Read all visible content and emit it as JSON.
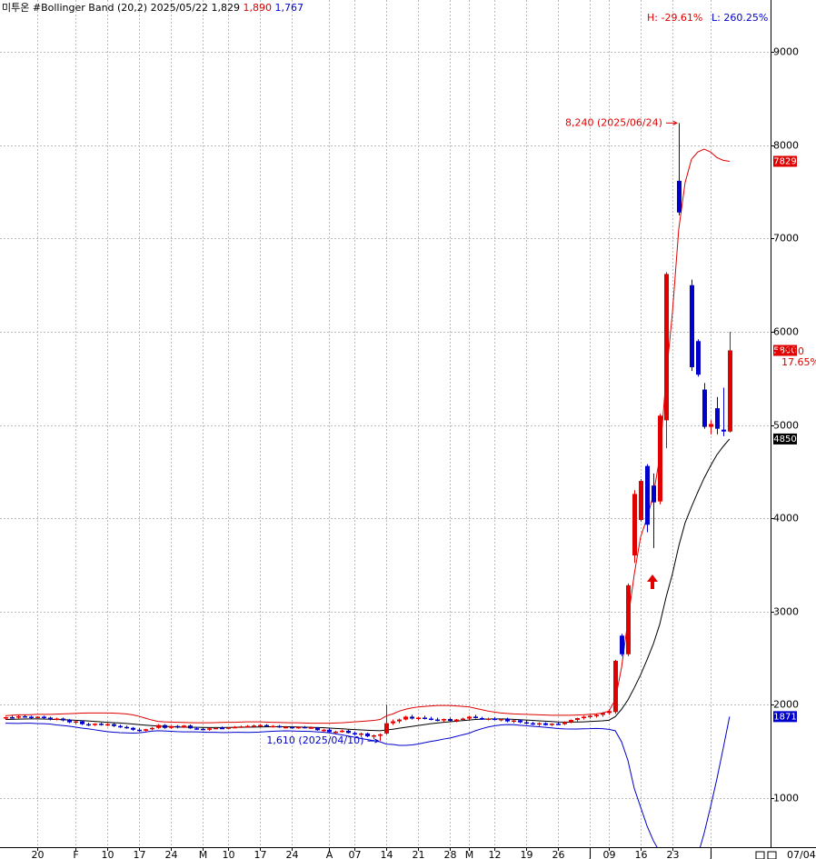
{
  "chart_data": {
    "type": "candlestick",
    "header": {
      "name": "미투온",
      "indicator": "#Bollinger Band  (20,2)",
      "date": "2025/05/22",
      "close": "1,829",
      "high": "1,890",
      "low": "1,767"
    },
    "range_high": "H: -29.61%",
    "range_low": "L: 260.25%",
    "last_date": "07/04",
    "change": "870",
    "change_pct": "17.65%",
    "ylim": [
      470,
      9560
    ],
    "yticks": [
      1000,
      2000,
      3000,
      4000,
      5000,
      6000,
      7000,
      8000,
      9000
    ],
    "grid": true,
    "colors": {
      "up": "#e00000",
      "down": "#0000cc",
      "upper": "#e00000",
      "middle": "#000000",
      "lower": "#0000cc"
    },
    "categories": [
      null,
      null,
      null,
      null,
      null,
      "20",
      null,
      null,
      null,
      null,
      null,
      "F",
      null,
      null,
      null,
      null,
      "10",
      null,
      null,
      null,
      null,
      "17",
      null,
      null,
      null,
      null,
      "24",
      null,
      null,
      null,
      null,
      "M",
      null,
      null,
      null,
      "10",
      null,
      null,
      null,
      null,
      "17",
      null,
      null,
      null,
      null,
      "24",
      null,
      null,
      null,
      null,
      null,
      "A",
      null,
      null,
      null,
      "07",
      null,
      null,
      null,
      null,
      "14",
      null,
      null,
      null,
      null,
      "21",
      null,
      null,
      null,
      null,
      "28",
      null,
      null,
      "M",
      null,
      null,
      null,
      "12",
      null,
      null,
      null,
      null,
      "19",
      null,
      null,
      null,
      null,
      "26",
      null,
      null,
      null,
      null,
      "J",
      null,
      null,
      "09",
      null,
      null,
      null,
      null,
      "16",
      null,
      null,
      null,
      null,
      "23",
      null,
      null,
      null,
      null,
      null,
      "J",
      null,
      null,
      null
    ],
    "ohlc": [
      [
        1850,
        1870,
        1840,
        1865
      ],
      [
        1865,
        1880,
        1855,
        1860
      ],
      [
        1860,
        1885,
        1850,
        1875
      ],
      [
        1875,
        1890,
        1860,
        1870
      ],
      [
        1870,
        1880,
        1850,
        1855
      ],
      [
        1855,
        1875,
        1845,
        1870
      ],
      [
        1870,
        1880,
        1850,
        1860
      ],
      [
        1860,
        1870,
        1830,
        1840
      ],
      [
        1840,
        1860,
        1830,
        1850
      ],
      [
        1850,
        1860,
        1820,
        1830
      ],
      [
        1830,
        1845,
        1800,
        1810
      ],
      [
        1810,
        1830,
        1790,
        1820
      ],
      [
        1820,
        1830,
        1780,
        1790
      ],
      [
        1790,
        1805,
        1770,
        1785
      ],
      [
        1785,
        1800,
        1770,
        1795
      ],
      [
        1795,
        1805,
        1775,
        1780
      ],
      [
        1780,
        1800,
        1770,
        1790
      ],
      [
        1790,
        1800,
        1760,
        1770
      ],
      [
        1770,
        1785,
        1750,
        1760
      ],
      [
        1760,
        1775,
        1740,
        1750
      ],
      [
        1750,
        1760,
        1720,
        1730
      ],
      [
        1730,
        1745,
        1710,
        1720
      ],
      [
        1720,
        1740,
        1710,
        1735
      ],
      [
        1735,
        1760,
        1725,
        1750
      ],
      [
        1750,
        1790,
        1740,
        1780
      ],
      [
        1780,
        1790,
        1740,
        1750
      ],
      [
        1750,
        1775,
        1740,
        1770
      ],
      [
        1770,
        1780,
        1745,
        1755
      ],
      [
        1755,
        1780,
        1750,
        1775
      ],
      [
        1775,
        1785,
        1740,
        1745
      ],
      [
        1745,
        1760,
        1730,
        1740
      ],
      [
        1740,
        1755,
        1725,
        1730
      ],
      [
        1730,
        1750,
        1720,
        1745
      ],
      [
        1745,
        1760,
        1735,
        1750
      ],
      [
        1750,
        1765,
        1740,
        1745
      ],
      [
        1745,
        1760,
        1735,
        1755
      ],
      [
        1755,
        1770,
        1745,
        1760
      ],
      [
        1760,
        1775,
        1750,
        1765
      ],
      [
        1765,
        1780,
        1755,
        1770
      ],
      [
        1770,
        1785,
        1760,
        1775
      ],
      [
        1775,
        1790,
        1765,
        1780
      ],
      [
        1780,
        1790,
        1760,
        1765
      ],
      [
        1765,
        1780,
        1755,
        1770
      ],
      [
        1770,
        1780,
        1750,
        1755
      ],
      [
        1755,
        1770,
        1745,
        1760
      ],
      [
        1760,
        1770,
        1740,
        1745
      ],
      [
        1745,
        1765,
        1740,
        1760
      ],
      [
        1760,
        1770,
        1745,
        1750
      ],
      [
        1750,
        1765,
        1740,
        1755
      ],
      [
        1755,
        1760,
        1720,
        1725
      ],
      [
        1725,
        1740,
        1710,
        1730
      ],
      [
        1730,
        1745,
        1700,
        1705
      ],
      [
        1705,
        1720,
        1690,
        1710
      ],
      [
        1710,
        1730,
        1700,
        1720
      ],
      [
        1720,
        1730,
        1690,
        1695
      ],
      [
        1695,
        1710,
        1670,
        1680
      ],
      [
        1680,
        1700,
        1660,
        1690
      ],
      [
        1690,
        1700,
        1650,
        1660
      ],
      [
        1660,
        1680,
        1630,
        1670
      ],
      [
        1670,
        1690,
        1610,
        1680
      ],
      [
        1690,
        2000,
        1680,
        1800
      ],
      [
        1800,
        1840,
        1780,
        1820
      ],
      [
        1820,
        1850,
        1800,
        1840
      ],
      [
        1840,
        1880,
        1830,
        1870
      ],
      [
        1870,
        1890,
        1840,
        1850
      ],
      [
        1850,
        1870,
        1830,
        1860
      ],
      [
        1860,
        1880,
        1840,
        1850
      ],
      [
        1850,
        1870,
        1830,
        1840
      ],
      [
        1840,
        1860,
        1820,
        1830
      ],
      [
        1830,
        1850,
        1815,
        1845
      ],
      [
        1845,
        1860,
        1820,
        1825
      ],
      [
        1825,
        1845,
        1810,
        1840
      ],
      [
        1840,
        1860,
        1830,
        1850
      ],
      [
        1850,
        1880,
        1840,
        1870
      ],
      [
        1870,
        1890,
        1850,
        1855
      ],
      [
        1855,
        1870,
        1835,
        1840
      ],
      [
        1840,
        1860,
        1830,
        1850
      ],
      [
        1850,
        1865,
        1830,
        1835
      ],
      [
        1835,
        1850,
        1820,
        1845
      ],
      [
        1845,
        1860,
        1810,
        1820
      ],
      [
        1820,
        1840,
        1800,
        1830
      ],
      [
        1830,
        1840,
        1800,
        1810
      ],
      [
        1810,
        1830,
        1790,
        1800
      ],
      [
        1800,
        1815,
        1780,
        1790
      ],
      [
        1790,
        1810,
        1770,
        1800
      ],
      [
        1800,
        1810,
        1775,
        1780
      ],
      [
        1780,
        1800,
        1770,
        1795
      ],
      [
        1795,
        1810,
        1780,
        1790
      ],
      [
        1790,
        1820,
        1780,
        1815
      ],
      [
        1815,
        1840,
        1800,
        1835
      ],
      [
        1835,
        1860,
        1820,
        1855
      ],
      [
        1855,
        1880,
        1840,
        1870
      ],
      [
        1870,
        1890,
        1850,
        1880
      ],
      [
        1880,
        1900,
        1860,
        1890
      ],
      [
        1890,
        1920,
        1870,
        1910
      ],
      [
        1910,
        1950,
        1890,
        1930
      ],
      [
        1920,
        2480,
        1900,
        2470
      ],
      [
        2740,
        2760,
        2520,
        2540
      ],
      [
        2540,
        3300,
        2520,
        3280
      ],
      [
        3600,
        4300,
        3520,
        4260
      ],
      [
        3980,
        4420,
        3960,
        4400
      ],
      [
        4560,
        4580,
        3850,
        3930
      ],
      [
        4350,
        4480,
        3680,
        4170
      ],
      [
        4180,
        5120,
        4150,
        5100
      ],
      [
        5050,
        6640,
        4750,
        6620
      ],
      null,
      [
        7620,
        8240,
        7250,
        7280
      ],
      null,
      [
        6500,
        6560,
        5580,
        5620
      ],
      [
        5900,
        5920,
        5520,
        5540
      ],
      [
        5380,
        5450,
        4960,
        4980
      ],
      [
        4980,
        5050,
        4900,
        5010
      ],
      [
        5180,
        5300,
        4900,
        4960
      ],
      [
        4950,
        5400,
        4880,
        4930
      ],
      [
        4930,
        6000,
        4920,
        5800
      ]
    ],
    "upper_band": [
      1880,
      1885,
      1890,
      1890,
      1892,
      1895,
      1895,
      1895,
      1898,
      1900,
      1902,
      1905,
      1908,
      1910,
      1910,
      1910,
      1910,
      1908,
      1905,
      1900,
      1890,
      1875,
      1855,
      1835,
      1820,
      1815,
      1812,
      1810,
      1808,
      1806,
      1805,
      1805,
      1805,
      1806,
      1808,
      1810,
      1810,
      1812,
      1815,
      1815,
      1815,
      1812,
      1810,
      1808,
      1806,
      1805,
      1805,
      1803,
      1800,
      1800,
      1800,
      1800,
      1802,
      1805,
      1810,
      1815,
      1820,
      1825,
      1830,
      1840,
      1880,
      1900,
      1930,
      1950,
      1965,
      1975,
      1980,
      1985,
      1990,
      1990,
      1990,
      1985,
      1980,
      1975,
      1960,
      1945,
      1930,
      1920,
      1910,
      1905,
      1900,
      1898,
      1895,
      1893,
      1890,
      1888,
      1886,
      1885,
      1885,
      1886,
      1888,
      1890,
      1895,
      1900,
      1910,
      1930,
      2050,
      2400,
      2900,
      3400,
      3800,
      4000,
      4250,
      4650,
      5500,
      6200,
      7100,
      7600,
      7850,
      7930,
      7960,
      7930,
      7870,
      7840,
      7829
    ],
    "middle_band": [
      1840,
      1842,
      1844,
      1845,
      1846,
      1846,
      1845,
      1843,
      1840,
      1838,
      1835,
      1832,
      1828,
      1825,
      1820,
      1815,
      1810,
      1806,
      1802,
      1798,
      1792,
      1786,
      1780,
      1775,
      1770,
      1766,
      1763,
      1760,
      1758,
      1757,
      1756,
      1755,
      1754,
      1754,
      1754,
      1755,
      1756,
      1757,
      1758,
      1759,
      1760,
      1761,
      1762,
      1762,
      1762,
      1761,
      1760,
      1758,
      1756,
      1754,
      1752,
      1748,
      1744,
      1740,
      1736,
      1732,
      1728,
      1725,
      1722,
      1720,
      1728,
      1736,
      1746,
      1756,
      1766,
      1776,
      1786,
      1795,
      1803,
      1810,
      1816,
      1822,
      1828,
      1834,
      1840,
      1843,
      1845,
      1846,
      1846,
      1845,
      1842,
      1838,
      1834,
      1830,
      1826,
      1822,
      1818,
      1814,
      1812,
      1812,
      1813,
      1815,
      1818,
      1822,
      1826,
      1832,
      1870,
      1950,
      2050,
      2180,
      2320,
      2480,
      2650,
      2860,
      3150,
      3400,
      3700,
      3950,
      4120,
      4280,
      4430,
      4560,
      4680,
      4770,
      4850
    ],
    "lower_band": [
      1800,
      1799,
      1798,
      1800,
      1800,
      1797,
      1795,
      1791,
      1782,
      1776,
      1768,
      1759,
      1748,
      1740,
      1730,
      1720,
      1710,
      1704,
      1699,
      1696,
      1694,
      1697,
      1705,
      1715,
      1720,
      1717,
      1714,
      1710,
      1708,
      1708,
      1707,
      1705,
      1703,
      1702,
      1700,
      1700,
      1702,
      1702,
      1701,
      1703,
      1705,
      1710,
      1714,
      1716,
      1718,
      1717,
      1715,
      1713,
      1712,
      1708,
      1704,
      1696,
      1686,
      1675,
      1662,
      1649,
      1636,
      1625,
      1614,
      1600,
      1576,
      1572,
      1562,
      1562,
      1567,
      1577,
      1592,
      1605,
      1616,
      1630,
      1642,
      1659,
      1676,
      1693,
      1720,
      1741,
      1760,
      1772,
      1782,
      1785,
      1784,
      1778,
      1773,
      1767,
      1762,
      1756,
      1750,
      1743,
      1739,
      1738,
      1738,
      1740,
      1741,
      1744,
      1742,
      1734,
      1720,
      1600,
      1400,
      1100,
      900,
      700,
      540,
      420,
      300,
      200,
      100,
      120,
      200,
      380,
      620,
      900,
      1200,
      1530,
      1871
    ],
    "annotations": [
      {
        "text": "8,240 (2025/06/24)",
        "at": 106,
        "value": 8240,
        "color": "#e00000"
      },
      {
        "text": "1,610 (2025/04/10)",
        "at": 59,
        "value": 1610,
        "color": "#0000cc"
      }
    ],
    "price_tags": [
      {
        "value": 7829,
        "color": "#e00000"
      },
      {
        "value": 5800,
        "color": "#e00000"
      },
      {
        "value": 4850,
        "color": "#000000"
      },
      {
        "value": 1871,
        "color": "#0000cc"
      }
    ]
  }
}
